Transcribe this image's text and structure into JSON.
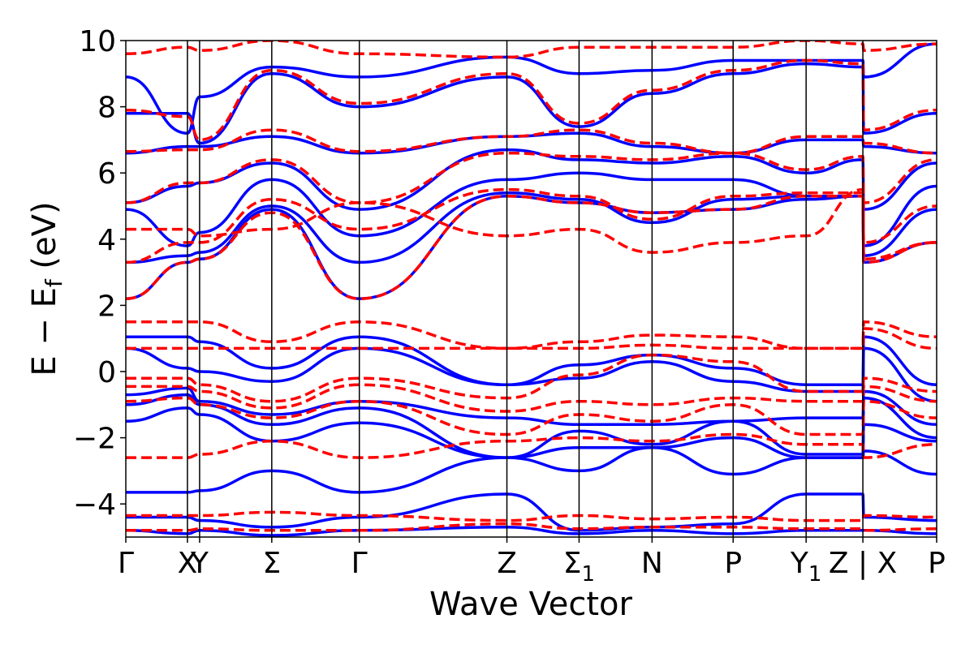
{
  "chart_data": {
    "type": "line",
    "title": "",
    "xlabel": "Wave Vector",
    "ylabel": "E − E",
    "ylabel_sub": "f",
    "ylabel_unit": " (eV)",
    "ylim": [
      -5,
      10
    ],
    "yticks": [
      -4,
      -2,
      0,
      2,
      4,
      6,
      8,
      10
    ],
    "ytick_labels": [
      "−4",
      "−2",
      "0",
      "2",
      "4",
      "6",
      "8",
      "10"
    ],
    "xlim": [
      0,
      1
    ],
    "kpath": [
      {
        "label": "Γ",
        "sub": "",
        "x": 0.0
      },
      {
        "label": "X",
        "sub": "",
        "x": 0.076
      },
      {
        "label": "Y",
        "sub": "",
        "x": 0.091
      },
      {
        "label": "Σ",
        "sub": "",
        "x": 0.18
      },
      {
        "label": "Γ",
        "sub": "",
        "x": 0.288
      },
      {
        "label": "Z",
        "sub": "",
        "x": 0.47
      },
      {
        "label": "Σ",
        "sub": "1",
        "x": 0.559
      },
      {
        "label": "N",
        "sub": "",
        "x": 0.649
      },
      {
        "label": "P",
        "sub": "",
        "x": 0.749
      },
      {
        "label": "Y",
        "sub": "1",
        "x": 0.839
      },
      {
        "label": "Z | X",
        "sub": "",
        "x": 0.909
      },
      {
        "label": "P",
        "sub": "",
        "x": 1.0
      }
    ],
    "x_nodes": [
      0.0,
      0.076,
      0.091,
      0.18,
      0.288,
      0.47,
      0.559,
      0.649,
      0.749,
      0.839,
      0.909,
      0.91,
      1.0
    ],
    "legend": "none",
    "grid": false,
    "series": [
      {
        "style": "solid",
        "color": "#0000ff",
        "bands": [
          [
            2.2,
            3.3,
            3.4,
            4.9,
            2.2,
            5.3,
            5.1,
            4.8,
            4.9,
            5.2,
            5.3,
            3.3,
            3.9
          ],
          [
            3.3,
            3.5,
            3.6,
            5.0,
            3.3,
            5.4,
            5.2,
            4.5,
            5.2,
            5.3,
            5.3,
            3.5,
            4.9
          ],
          [
            4.9,
            3.8,
            4.2,
            5.8,
            4.1,
            5.8,
            6.0,
            5.8,
            5.8,
            5.3,
            5.3,
            3.8,
            5.6
          ],
          [
            5.1,
            5.6,
            5.7,
            6.3,
            4.9,
            6.7,
            6.4,
            6.3,
            6.5,
            6.0,
            6.4,
            4.9,
            6.3
          ],
          [
            6.6,
            6.8,
            6.8,
            7.1,
            6.6,
            7.1,
            7.2,
            6.8,
            6.6,
            7.0,
            7.0,
            6.8,
            6.6
          ],
          [
            7.8,
            7.8,
            6.9,
            9.0,
            8.0,
            8.9,
            7.4,
            8.4,
            9.0,
            9.3,
            9.2,
            7.2,
            7.8
          ],
          [
            8.9,
            7.2,
            8.3,
            9.2,
            8.9,
            9.5,
            9.0,
            9.1,
            9.4,
            9.4,
            9.4,
            8.9,
            9.9
          ],
          [
            1.05,
            1.05,
            0.9,
            0.1,
            1.05,
            -0.4,
            0.2,
            0.5,
            0.1,
            -0.4,
            -0.4,
            1.05,
            -0.4
          ],
          [
            0.7,
            0.1,
            0.0,
            -0.3,
            0.7,
            -0.4,
            -0.2,
            0.3,
            -0.3,
            -0.6,
            -0.6,
            0.7,
            -0.9
          ],
          [
            -0.7,
            -0.5,
            -0.9,
            -1.3,
            -0.9,
            -1.4,
            -1.6,
            -1.6,
            -1.5,
            -1.4,
            -1.4,
            -0.6,
            -1.6
          ],
          [
            -1.0,
            -0.7,
            -1.0,
            -1.6,
            -1.1,
            -2.6,
            -1.8,
            -2.2,
            -1.5,
            -2.5,
            -2.5,
            -0.8,
            -2.0
          ],
          [
            -1.5,
            -1.1,
            -1.3,
            -2.1,
            -1.55,
            -2.6,
            -2.3,
            -2.3,
            -2.0,
            -2.6,
            -2.6,
            -1.6,
            -2.1
          ],
          [
            -3.65,
            -3.65,
            -3.6,
            -3.0,
            -3.65,
            -2.6,
            -3.0,
            -2.3,
            -3.1,
            -2.6,
            -2.6,
            -2.4,
            -3.1
          ],
          [
            -4.4,
            -4.4,
            -4.5,
            -4.7,
            -4.4,
            -3.7,
            -4.8,
            -4.7,
            -4.6,
            -3.7,
            -3.7,
            -4.4,
            -4.5
          ],
          [
            -4.8,
            -4.9,
            -4.8,
            -4.95,
            -4.8,
            -4.7,
            -4.9,
            -4.8,
            -4.9,
            -4.8,
            -4.8,
            -4.8,
            -4.9
          ]
        ]
      },
      {
        "style": "dashed",
        "color": "#ff0000",
        "bands": [
          [
            2.2,
            3.3,
            3.4,
            4.8,
            2.2,
            5.3,
            5.1,
            4.8,
            4.9,
            5.3,
            5.3,
            3.3,
            3.9
          ],
          [
            3.3,
            3.9,
            3.9,
            5.2,
            4.3,
            5.5,
            5.3,
            4.6,
            5.3,
            5.4,
            5.4,
            3.9,
            5.0
          ],
          [
            4.3,
            4.3,
            4.1,
            4.3,
            5.1,
            4.1,
            4.3,
            3.6,
            3.9,
            4.1,
            5.5,
            3.4,
            3.9
          ],
          [
            5.1,
            5.7,
            5.7,
            6.4,
            5.1,
            6.6,
            6.5,
            6.4,
            6.6,
            6.1,
            6.5,
            5.1,
            6.4
          ],
          [
            6.65,
            6.7,
            6.7,
            7.3,
            6.65,
            7.1,
            7.3,
            6.9,
            6.6,
            7.1,
            7.1,
            6.9,
            6.6
          ],
          [
            7.9,
            7.7,
            7.0,
            9.1,
            8.1,
            9.0,
            7.5,
            8.5,
            9.1,
            9.4,
            9.3,
            7.3,
            7.9
          ],
          [
            9.6,
            9.8,
            9.7,
            10.0,
            9.6,
            9.5,
            9.8,
            9.8,
            9.8,
            10.0,
            9.9,
            9.7,
            9.9
          ],
          [
            1.5,
            1.5,
            1.5,
            0.9,
            1.5,
            0.7,
            0.9,
            1.1,
            1.05,
            0.7,
            0.7,
            1.5,
            1.05
          ],
          [
            0.7,
            0.7,
            0.7,
            0.7,
            0.7,
            0.7,
            0.7,
            0.8,
            0.7,
            0.7,
            0.7,
            1.3,
            0.7
          ],
          [
            -0.2,
            -0.2,
            -0.4,
            -0.9,
            -0.2,
            -0.8,
            -0.1,
            0.5,
            0.3,
            -0.6,
            -0.6,
            -0.2,
            -0.6
          ],
          [
            -0.45,
            -0.45,
            -0.6,
            -1.1,
            -0.4,
            -1.2,
            -0.9,
            -1.0,
            -0.8,
            -0.9,
            -0.9,
            -0.45,
            -0.9
          ],
          [
            -0.9,
            -0.8,
            -1.0,
            -1.4,
            -0.9,
            -1.9,
            -1.3,
            -1.5,
            -1.0,
            -1.9,
            -1.9,
            -0.9,
            -1.4
          ],
          [
            -2.6,
            -2.6,
            -2.5,
            -2.1,
            -2.6,
            -2.1,
            -2.0,
            -2.1,
            -1.9,
            -2.2,
            -2.2,
            -2.6,
            -2.2
          ],
          [
            -4.35,
            -4.35,
            -4.35,
            -4.25,
            -4.35,
            -4.5,
            -4.35,
            -4.45,
            -4.4,
            -4.5,
            -4.5,
            -4.35,
            -4.4
          ],
          [
            -4.8,
            -4.8,
            -4.75,
            -4.8,
            -4.8,
            -4.6,
            -4.75,
            -4.7,
            -4.7,
            -4.75,
            -4.75,
            -4.8,
            -4.75
          ]
        ]
      }
    ]
  }
}
